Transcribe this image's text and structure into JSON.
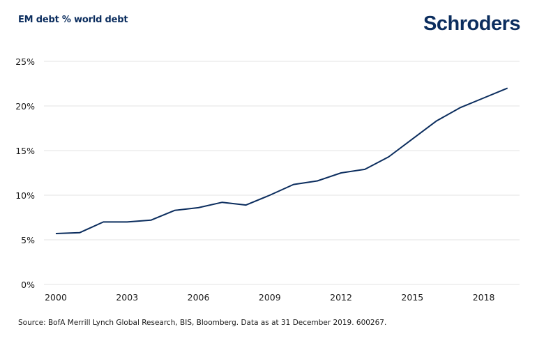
{
  "title": "EM debt % world debt",
  "logo": "Schroders",
  "source": "Source: BofA Merrill Lynch Global Research, BIS, Bloomberg. Data as at 31 December 2019. 600267.",
  "colors": {
    "line": "#0b2d5e",
    "grid": "#e3e3e3",
    "title": "#0b2d5e"
  },
  "chart_data": {
    "type": "line",
    "title": "EM debt % world debt",
    "xlabel": "",
    "ylabel": "",
    "x": [
      2000,
      2001,
      2002,
      2003,
      2004,
      2005,
      2006,
      2007,
      2008,
      2009,
      2010,
      2011,
      2012,
      2013,
      2014,
      2015,
      2016,
      2017,
      2018,
      2019
    ],
    "series": [
      {
        "name": "EM debt % world debt",
        "values": [
          5.7,
          5.8,
          7.0,
          7.0,
          7.2,
          8.3,
          8.6,
          9.2,
          8.9,
          10.0,
          11.2,
          11.6,
          12.5,
          12.9,
          14.3,
          16.3,
          18.3,
          19.8,
          20.9,
          22.0
        ]
      }
    ],
    "xticks": [
      2000,
      2003,
      2006,
      2009,
      2012,
      2015,
      2018
    ],
    "xtick_labels": [
      "2000",
      "2003",
      "2006",
      "2009",
      "2012",
      "2015",
      "2018"
    ],
    "yticks": [
      0,
      5,
      10,
      15,
      20,
      25
    ],
    "ytick_labels": [
      "0%",
      "5%",
      "10%",
      "15%",
      "20%",
      "25%"
    ],
    "xlim": [
      2000,
      2019
    ],
    "ylim": [
      0,
      25
    ],
    "grid": true,
    "legend": "none"
  }
}
